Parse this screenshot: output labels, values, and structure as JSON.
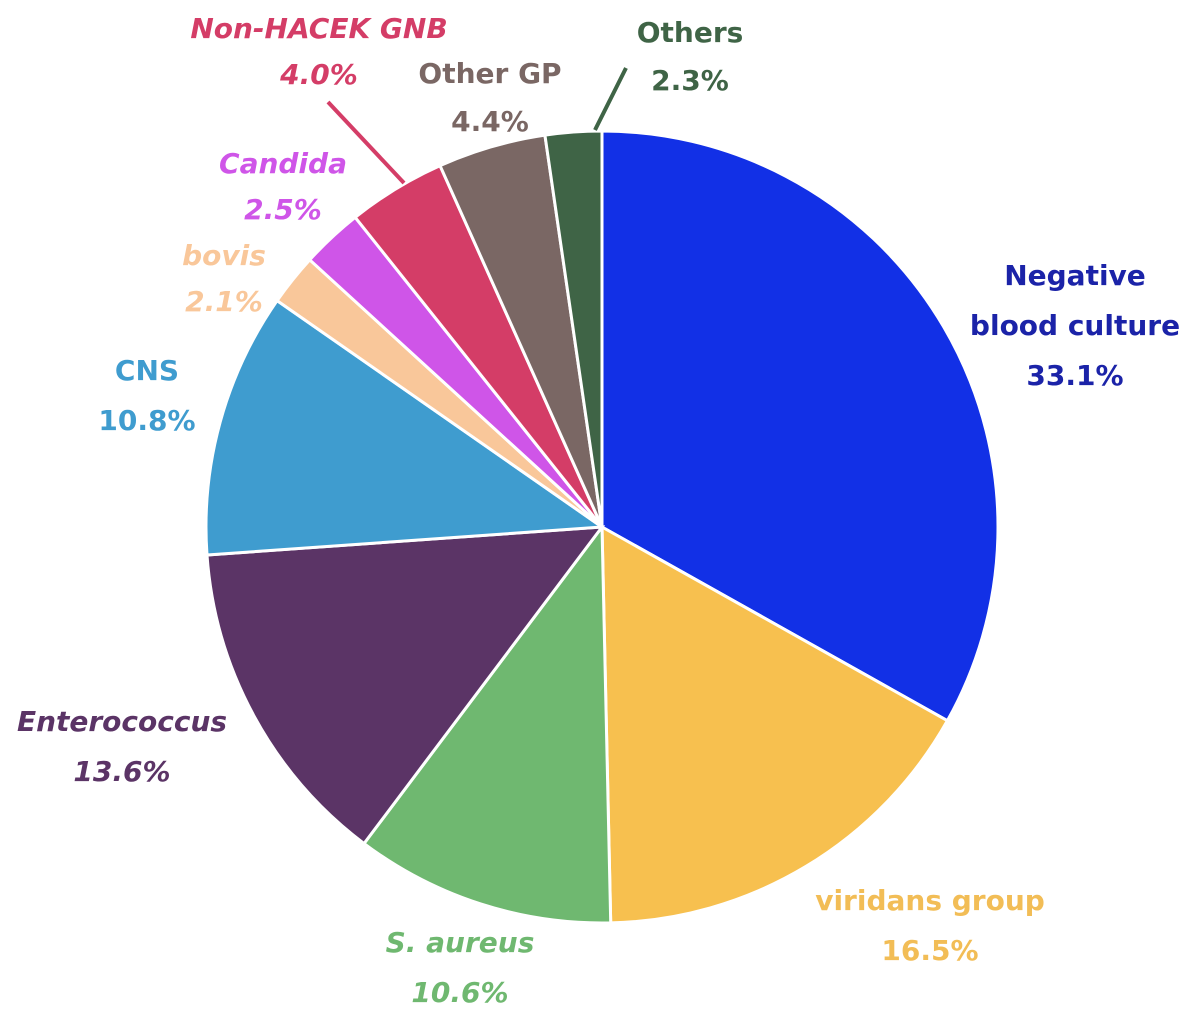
{
  "chart_data": {
    "type": "pie",
    "title": "",
    "start_angle_deg": 0,
    "direction": "clockwise",
    "slices": [
      {
        "label_lines": [
          "Negative",
          "blood culture"
        ],
        "value_text": "33.1%",
        "value": 33.1,
        "color": "#1230e6",
        "italic": false
      },
      {
        "label_lines": [
          "viridans group"
        ],
        "value_text": "16.5%",
        "value": 16.5,
        "color": "#f7c04f",
        "italic": false
      },
      {
        "label_lines": [
          "S. aureus"
        ],
        "value_text": "10.6%",
        "value": 10.6,
        "color": "#6fb870",
        "italic": true
      },
      {
        "label_lines": [
          "Enterococcus"
        ],
        "value_text": "13.6%",
        "value": 13.6,
        "color": "#5b3466",
        "italic": true
      },
      {
        "label_lines": [
          "CNS"
        ],
        "value_text": "10.8%",
        "value": 10.8,
        "color": "#3f9ccf",
        "italic": false
      },
      {
        "label_lines": [
          "bovis"
        ],
        "value_text": "2.1%",
        "value": 2.1,
        "color": "#f9c79a",
        "italic": true
      },
      {
        "label_lines": [
          "Candida"
        ],
        "value_text": "2.5%",
        "value": 2.5,
        "color": "#cf55e8",
        "italic": true
      },
      {
        "label_lines": [
          "Non-HACEK GNB"
        ],
        "value_text": "4.0%",
        "value": 4.0,
        "color": "#d43d67",
        "italic": true
      },
      {
        "label_lines": [
          "Other GP"
        ],
        "value_text": "4.4%",
        "value": 4.4,
        "color": "#7a6764",
        "italic": false
      },
      {
        "label_lines": [
          "Others"
        ],
        "value_text": "2.3%",
        "value": 2.3,
        "color": "#3f6446",
        "italic": false
      }
    ],
    "label_colors": [
      "#1b23a8",
      "#f2bd56",
      "#6fb870",
      "#5b3466",
      "#3f9ccf",
      "#f9c79a",
      "#cf55e8",
      "#d43d67",
      "#7a6764",
      "#3f6446"
    ],
    "leader_lines": [
      "Non-HACEK GNB",
      "Others"
    ]
  }
}
